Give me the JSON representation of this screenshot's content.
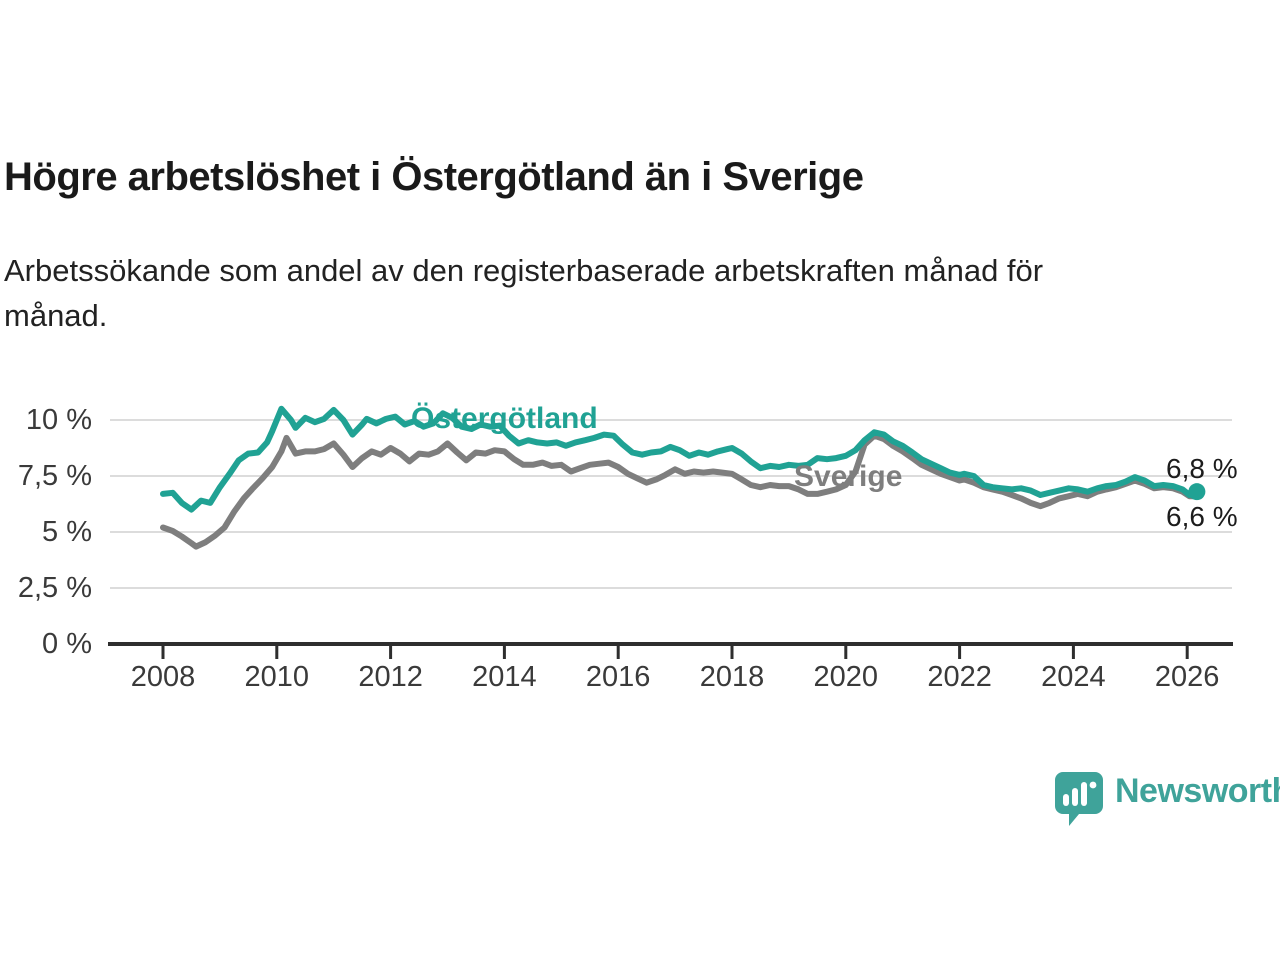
{
  "header": {
    "title": "Högre arbetslöshet i Östergötland än i Sverige",
    "subtitle_line1": "Arbetssökande som andel av den registerbaserade arbetskraften månad för",
    "subtitle_line2": "månad."
  },
  "branding": {
    "logo_text": "Newsworthy",
    "logo_icon": "newsworthy-speech-bubble-bar-chart-icon",
    "brand_color": "#3fa39a"
  },
  "chart_data": {
    "type": "line",
    "title": "Högre arbetslöshet i Östergötland än i Sverige",
    "unit": "%",
    "grid": true,
    "x_axis": {
      "tick_values": [
        2008,
        2010,
        2012,
        2014,
        2016,
        2018,
        2020,
        2022,
        2024,
        2026
      ],
      "tick_labels": [
        "2008",
        "2010",
        "2012",
        "2014",
        "2016",
        "2018",
        "2020",
        "2022",
        "2024",
        "2026"
      ],
      "range": [
        2007.1,
        2026.8
      ]
    },
    "y_axis": {
      "tick_values": [
        10,
        7.5,
        5,
        2.5,
        0
      ],
      "tick_labels": [
        "10 %",
        "7,5 %",
        "5 %",
        "2,5 %",
        "0 %"
      ],
      "range": [
        0,
        11.2
      ]
    },
    "annotations": {
      "ostergotland_end_label": "6,8 %",
      "sverige_end_label": "6,6 %"
    },
    "series": [
      {
        "name": "Östergötland",
        "color": "#20a294",
        "end_dot": true,
        "end_value": 6.8,
        "points": [
          [
            2008.0,
            6.7
          ],
          [
            2008.17,
            6.75
          ],
          [
            2008.33,
            6.3
          ],
          [
            2008.5,
            6.0
          ],
          [
            2008.67,
            6.4
          ],
          [
            2008.83,
            6.3
          ],
          [
            2009.0,
            7.0
          ],
          [
            2009.17,
            7.6
          ],
          [
            2009.33,
            8.2
          ],
          [
            2009.5,
            8.5
          ],
          [
            2009.67,
            8.55
          ],
          [
            2009.83,
            9.0
          ],
          [
            2009.92,
            9.5
          ],
          [
            2010.08,
            10.5
          ],
          [
            2010.25,
            10.0
          ],
          [
            2010.33,
            9.65
          ],
          [
            2010.5,
            10.1
          ],
          [
            2010.67,
            9.9
          ],
          [
            2010.83,
            10.05
          ],
          [
            2011.0,
            10.45
          ],
          [
            2011.17,
            10.0
          ],
          [
            2011.33,
            9.35
          ],
          [
            2011.5,
            9.8
          ],
          [
            2011.58,
            10.05
          ],
          [
            2011.75,
            9.85
          ],
          [
            2011.92,
            10.05
          ],
          [
            2012.08,
            10.15
          ],
          [
            2012.25,
            9.8
          ],
          [
            2012.42,
            9.95
          ],
          [
            2012.58,
            9.7
          ],
          [
            2012.75,
            9.85
          ],
          [
            2012.92,
            10.3
          ],
          [
            2013.08,
            10.1
          ],
          [
            2013.25,
            9.7
          ],
          [
            2013.42,
            9.6
          ],
          [
            2013.58,
            9.8
          ],
          [
            2013.75,
            9.7
          ],
          [
            2013.92,
            9.75
          ],
          [
            2014.08,
            9.3
          ],
          [
            2014.25,
            8.95
          ],
          [
            2014.42,
            9.1
          ],
          [
            2014.58,
            9.0
          ],
          [
            2014.75,
            8.95
          ],
          [
            2014.92,
            9.0
          ],
          [
            2015.08,
            8.85
          ],
          [
            2015.25,
            9.0
          ],
          [
            2015.42,
            9.1
          ],
          [
            2015.58,
            9.2
          ],
          [
            2015.75,
            9.35
          ],
          [
            2015.92,
            9.3
          ],
          [
            2016.08,
            8.9
          ],
          [
            2016.25,
            8.55
          ],
          [
            2016.42,
            8.45
          ],
          [
            2016.58,
            8.55
          ],
          [
            2016.75,
            8.6
          ],
          [
            2016.92,
            8.8
          ],
          [
            2017.08,
            8.65
          ],
          [
            2017.25,
            8.4
          ],
          [
            2017.42,
            8.55
          ],
          [
            2017.58,
            8.45
          ],
          [
            2017.75,
            8.6
          ],
          [
            2017.92,
            8.7
          ],
          [
            2018.0,
            8.75
          ],
          [
            2018.17,
            8.5
          ],
          [
            2018.33,
            8.15
          ],
          [
            2018.5,
            7.85
          ],
          [
            2018.67,
            7.95
          ],
          [
            2018.83,
            7.9
          ],
          [
            2019.0,
            8.0
          ],
          [
            2019.17,
            7.95
          ],
          [
            2019.33,
            8.0
          ],
          [
            2019.5,
            8.3
          ],
          [
            2019.67,
            8.25
          ],
          [
            2019.83,
            8.3
          ],
          [
            2020.0,
            8.4
          ],
          [
            2020.17,
            8.65
          ],
          [
            2020.33,
            9.1
          ],
          [
            2020.5,
            9.45
          ],
          [
            2020.67,
            9.35
          ],
          [
            2020.83,
            9.05
          ],
          [
            2021.0,
            8.85
          ],
          [
            2021.17,
            8.55
          ],
          [
            2021.33,
            8.25
          ],
          [
            2021.5,
            8.05
          ],
          [
            2021.67,
            7.85
          ],
          [
            2021.83,
            7.65
          ],
          [
            2022.0,
            7.55
          ],
          [
            2022.08,
            7.6
          ],
          [
            2022.25,
            7.5
          ],
          [
            2022.42,
            7.1
          ],
          [
            2022.58,
            7.0
          ],
          [
            2022.75,
            6.95
          ],
          [
            2022.92,
            6.9
          ],
          [
            2023.08,
            6.95
          ],
          [
            2023.25,
            6.85
          ],
          [
            2023.42,
            6.65
          ],
          [
            2023.58,
            6.75
          ],
          [
            2023.75,
            6.85
          ],
          [
            2023.92,
            6.95
          ],
          [
            2024.08,
            6.9
          ],
          [
            2024.25,
            6.8
          ],
          [
            2024.42,
            6.95
          ],
          [
            2024.58,
            7.05
          ],
          [
            2024.75,
            7.1
          ],
          [
            2024.92,
            7.25
          ],
          [
            2025.08,
            7.45
          ],
          [
            2025.25,
            7.3
          ],
          [
            2025.42,
            7.05
          ],
          [
            2025.58,
            7.1
          ],
          [
            2025.75,
            7.05
          ],
          [
            2025.92,
            6.9
          ],
          [
            2026.04,
            6.65
          ],
          [
            2026.17,
            6.8
          ]
        ]
      },
      {
        "name": "Sverige",
        "color": "#7e7e7e",
        "end_dot": false,
        "end_value": 6.6,
        "points": [
          [
            2008.0,
            5.2
          ],
          [
            2008.17,
            5.05
          ],
          [
            2008.33,
            4.8
          ],
          [
            2008.5,
            4.5
          ],
          [
            2008.58,
            4.35
          ],
          [
            2008.75,
            4.55
          ],
          [
            2008.92,
            4.85
          ],
          [
            2009.08,
            5.2
          ],
          [
            2009.25,
            5.9
          ],
          [
            2009.42,
            6.5
          ],
          [
            2009.58,
            6.95
          ],
          [
            2009.75,
            7.4
          ],
          [
            2009.92,
            7.9
          ],
          [
            2010.08,
            8.6
          ],
          [
            2010.17,
            9.2
          ],
          [
            2010.33,
            8.5
          ],
          [
            2010.5,
            8.6
          ],
          [
            2010.67,
            8.6
          ],
          [
            2010.83,
            8.7
          ],
          [
            2011.0,
            8.95
          ],
          [
            2011.17,
            8.45
          ],
          [
            2011.33,
            7.9
          ],
          [
            2011.5,
            8.3
          ],
          [
            2011.67,
            8.6
          ],
          [
            2011.83,
            8.45
          ],
          [
            2012.0,
            8.75
          ],
          [
            2012.17,
            8.5
          ],
          [
            2012.33,
            8.15
          ],
          [
            2012.5,
            8.5
          ],
          [
            2012.67,
            8.45
          ],
          [
            2012.83,
            8.6
          ],
          [
            2013.0,
            8.95
          ],
          [
            2013.17,
            8.55
          ],
          [
            2013.33,
            8.2
          ],
          [
            2013.5,
            8.55
          ],
          [
            2013.67,
            8.5
          ],
          [
            2013.83,
            8.65
          ],
          [
            2014.0,
            8.6
          ],
          [
            2014.17,
            8.25
          ],
          [
            2014.33,
            8.0
          ],
          [
            2014.5,
            8.0
          ],
          [
            2014.67,
            8.1
          ],
          [
            2014.83,
            7.95
          ],
          [
            2015.0,
            8.0
          ],
          [
            2015.17,
            7.7
          ],
          [
            2015.33,
            7.85
          ],
          [
            2015.5,
            8.0
          ],
          [
            2015.67,
            8.05
          ],
          [
            2015.83,
            8.1
          ],
          [
            2016.0,
            7.9
          ],
          [
            2016.17,
            7.6
          ],
          [
            2016.33,
            7.4
          ],
          [
            2016.5,
            7.2
          ],
          [
            2016.67,
            7.35
          ],
          [
            2016.83,
            7.55
          ],
          [
            2017.0,
            7.8
          ],
          [
            2017.17,
            7.6
          ],
          [
            2017.33,
            7.7
          ],
          [
            2017.5,
            7.65
          ],
          [
            2017.67,
            7.7
          ],
          [
            2017.83,
            7.65
          ],
          [
            2018.0,
            7.6
          ],
          [
            2018.17,
            7.35
          ],
          [
            2018.33,
            7.1
          ],
          [
            2018.5,
            7.0
          ],
          [
            2018.67,
            7.1
          ],
          [
            2018.83,
            7.05
          ],
          [
            2019.0,
            7.05
          ],
          [
            2019.17,
            6.9
          ],
          [
            2019.33,
            6.7
          ],
          [
            2019.5,
            6.7
          ],
          [
            2019.67,
            6.8
          ],
          [
            2019.83,
            6.9
          ],
          [
            2020.0,
            7.1
          ],
          [
            2020.17,
            7.7
          ],
          [
            2020.33,
            8.9
          ],
          [
            2020.5,
            9.3
          ],
          [
            2020.67,
            9.15
          ],
          [
            2020.83,
            8.85
          ],
          [
            2021.0,
            8.6
          ],
          [
            2021.17,
            8.3
          ],
          [
            2021.33,
            8.0
          ],
          [
            2021.5,
            7.8
          ],
          [
            2021.67,
            7.6
          ],
          [
            2021.83,
            7.45
          ],
          [
            2022.0,
            7.3
          ],
          [
            2022.08,
            7.35
          ],
          [
            2022.25,
            7.2
          ],
          [
            2022.42,
            7.0
          ],
          [
            2022.58,
            6.9
          ],
          [
            2022.75,
            6.8
          ],
          [
            2022.92,
            6.65
          ],
          [
            2023.08,
            6.5
          ],
          [
            2023.25,
            6.3
          ],
          [
            2023.42,
            6.15
          ],
          [
            2023.58,
            6.3
          ],
          [
            2023.75,
            6.5
          ],
          [
            2023.92,
            6.6
          ],
          [
            2024.08,
            6.7
          ],
          [
            2024.25,
            6.6
          ],
          [
            2024.42,
            6.8
          ],
          [
            2024.58,
            6.9
          ],
          [
            2024.75,
            7.0
          ],
          [
            2024.92,
            7.15
          ],
          [
            2025.08,
            7.3
          ],
          [
            2025.25,
            7.15
          ],
          [
            2025.42,
            6.95
          ],
          [
            2025.58,
            7.0
          ],
          [
            2025.75,
            6.95
          ],
          [
            2025.92,
            6.8
          ],
          [
            2026.04,
            6.6
          ],
          [
            2026.17,
            6.6
          ]
        ]
      }
    ]
  }
}
